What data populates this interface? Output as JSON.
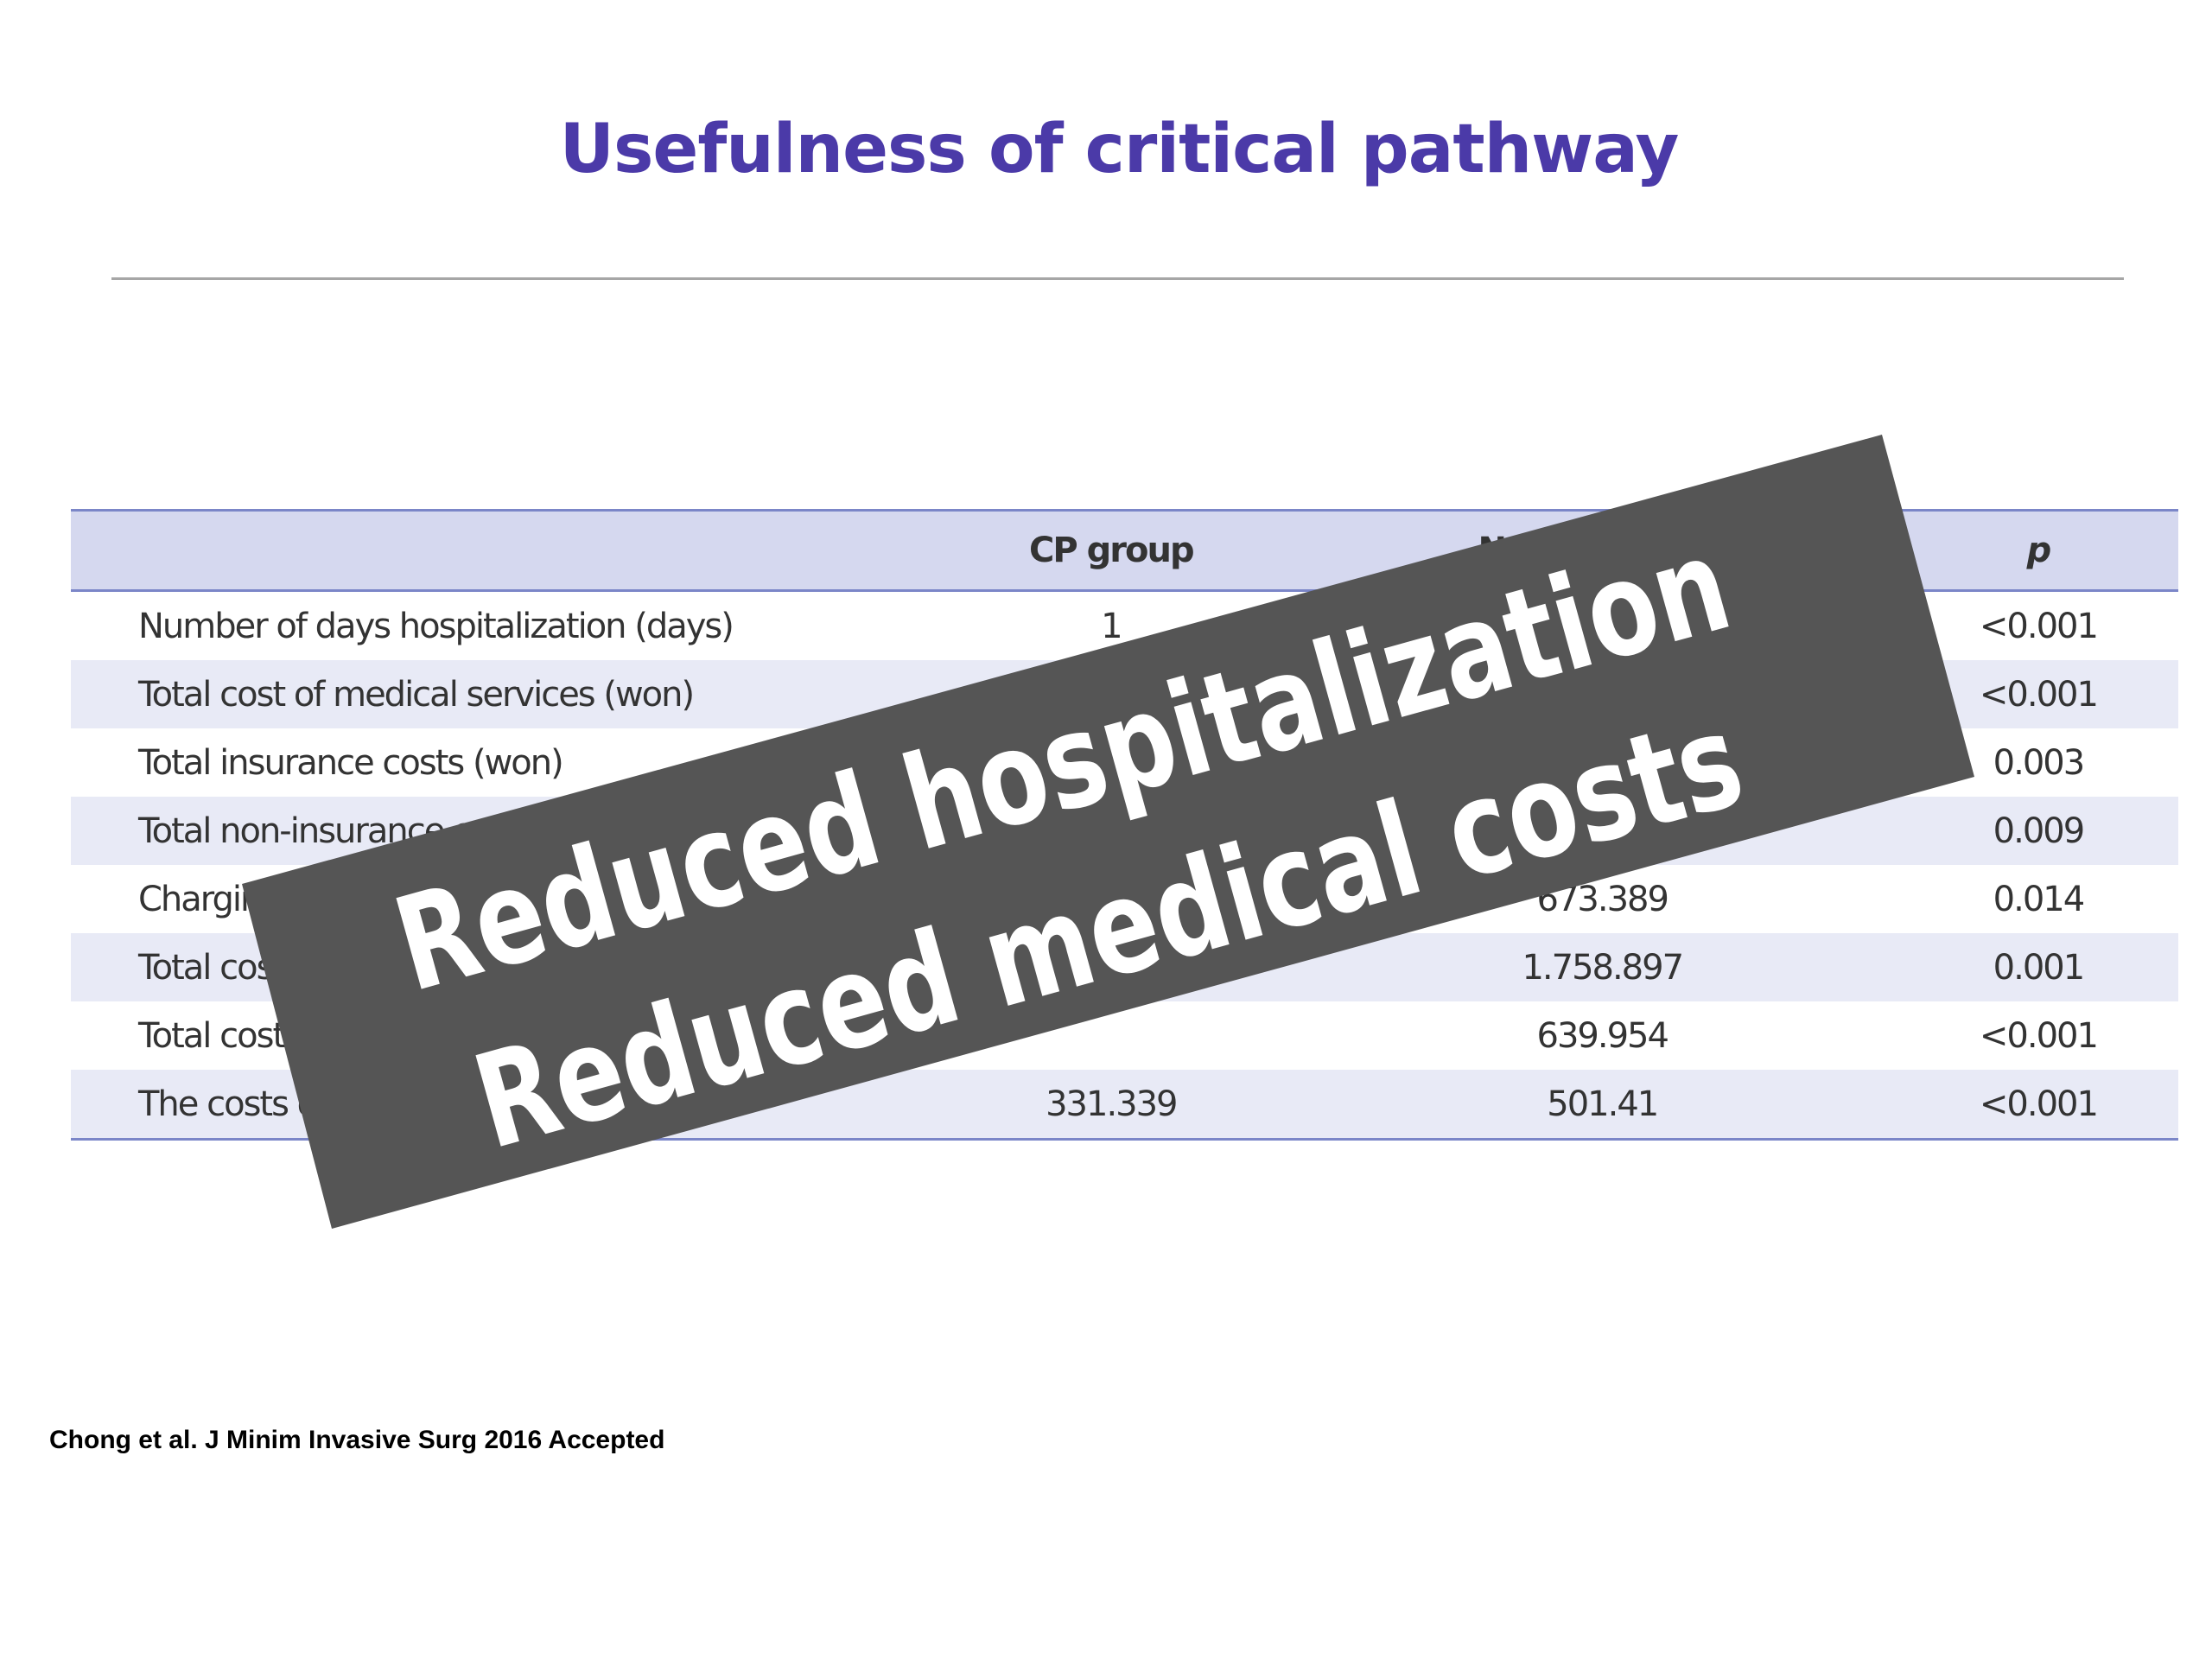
{
  "header": {
    "title": "Usefulness of critical pathway"
  },
  "table": {
    "columns": [
      null,
      "CP group",
      "Non-CP group",
      "p"
    ],
    "rows": [
      [
        "Number of days hospitalization (days)",
        "1",
        null,
        "<0.001"
      ],
      [
        "Total cost of medical services (won)",
        null,
        null,
        "<0.001"
      ],
      [
        "Total insurance costs (won)",
        null,
        null,
        "0.003"
      ],
      [
        "Total non-insurance costs (won)",
        null,
        null,
        "0.009"
      ],
      [
        "Charging",
        null,
        "673.389",
        "0.014"
      ],
      [
        "Total costs",
        null,
        "1.758.897",
        "0.001"
      ],
      [
        "Total costs",
        null,
        "639.954",
        "<0.001"
      ],
      [
        "The costs of",
        "331.339",
        "501.41",
        "<0.001"
      ]
    ]
  },
  "banner": {
    "lines": [
      "Reduced hospitalization",
      "Reduced medical costs"
    ]
  },
  "citation": "Chong et al. J Minim Invasive Surg 2016 Accepted"
}
